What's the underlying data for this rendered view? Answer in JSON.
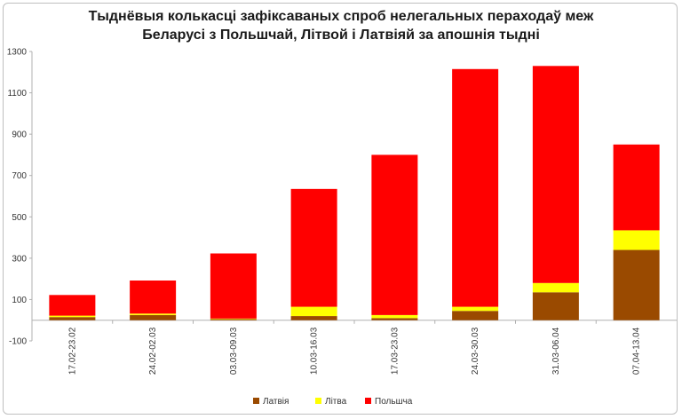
{
  "chart_data": {
    "type": "bar",
    "stacked": true,
    "title_line1": "Тыднёвыя колькасці зафіксаваных спроб нелегальных пераходаў меж",
    "title_line2": "Беларусі з Польшчай, Літвой і Латвіяй за апошнія тыдні",
    "categories": [
      "17.02-23.02",
      "24.02-02.03",
      "03.03-09.03",
      "10.03-16.03",
      "17.03-23.03",
      "24.03-30.03",
      "31.03-06.04",
      "07.04-13.04"
    ],
    "series": [
      {
        "name": "Латвія",
        "color": "#9a4a00",
        "values": [
          15,
          25,
          5,
          20,
          10,
          45,
          135,
          340
        ]
      },
      {
        "name": "Літва",
        "color": "#ffff00",
        "values": [
          7,
          7,
          3,
          45,
          15,
          20,
          45,
          95
        ]
      },
      {
        "name": "Польшча",
        "color": "#ff0000",
        "values": [
          100,
          160,
          315,
          570,
          775,
          1150,
          1050,
          415
        ]
      }
    ],
    "yticks": [
      "-100",
      "100",
      "300",
      "500",
      "700",
      "900",
      "1100",
      "1300"
    ],
    "ylim": [
      -100,
      1300
    ],
    "grid": false,
    "legend_position": "bottom-center"
  }
}
